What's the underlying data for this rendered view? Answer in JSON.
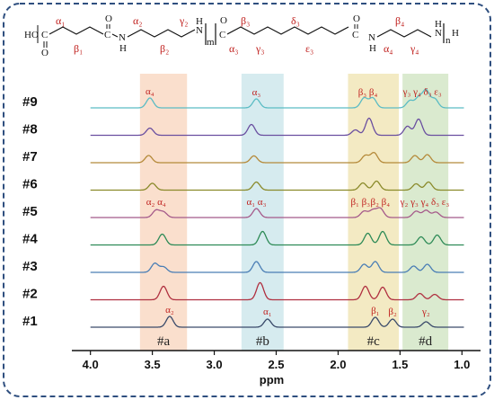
{
  "colors": {
    "frame": "#2f4f7f",
    "region_a": "#f9d9c4",
    "region_b": "#cfe7ec",
    "region_c": "#f1e6b8",
    "region_d": "#d3e6c7",
    "label_red": "#c0201e"
  },
  "structure": {
    "ho": "HO",
    "o_text": "O",
    "c_text": "C",
    "n_text": "N",
    "h_text": "H",
    "m_text": "m",
    "n_sub": "n",
    "alpha1": "α₁",
    "beta1": "β₁",
    "alpha2": "α₂",
    "beta2": "β₂",
    "gamma2": "γ₂",
    "beta3": "β₃",
    "delta3": "δ₃",
    "alpha3": "α₃",
    "gamma3": "γ₃",
    "epsilon3": "ε₃",
    "beta4": "β₄",
    "alpha4": "α₄",
    "gamma4": "γ₄"
  },
  "chart_data": {
    "type": "line",
    "xlabel": "ppm",
    "xlim": [
      4.15,
      0.85
    ],
    "x_reversed": true,
    "xticks": [
      4.0,
      3.5,
      3.0,
      2.5,
      2.0,
      1.5,
      1.0
    ],
    "regions": [
      {
        "label": "#a",
        "from": 3.6,
        "to": 3.22,
        "color": "#f9d9c4"
      },
      {
        "label": "#b",
        "from": 2.78,
        "to": 2.44,
        "color": "#cfe7ec"
      },
      {
        "label": "#c",
        "from": 1.92,
        "to": 1.51,
        "color": "#f1e6b8"
      },
      {
        "label": "#d",
        "from": 1.48,
        "to": 1.11,
        "color": "#d3e6c7"
      }
    ],
    "series": [
      {
        "name": "#9",
        "color": "#5bbcc4",
        "peaks": [
          [
            3.52,
            0.55
          ],
          [
            2.66,
            0.5
          ],
          [
            1.79,
            0.55
          ],
          [
            1.72,
            0.55
          ],
          [
            1.42,
            0.4
          ],
          [
            1.35,
            0.55
          ],
          [
            1.29,
            0.95
          ],
          [
            1.22,
            0.5
          ]
        ]
      },
      {
        "name": "#8",
        "color": "#6a4fa0",
        "peaks": [
          [
            3.52,
            0.4
          ],
          [
            2.7,
            0.6
          ],
          [
            1.86,
            0.3
          ],
          [
            1.75,
            0.95
          ],
          [
            1.44,
            0.5
          ],
          [
            1.35,
            0.9
          ]
        ]
      },
      {
        "name": "#7",
        "color": "#b58a3a",
        "peaks": [
          [
            3.53,
            0.4
          ],
          [
            2.68,
            0.38
          ],
          [
            1.78,
            0.4
          ],
          [
            1.71,
            0.55
          ],
          [
            1.38,
            0.4
          ],
          [
            1.28,
            0.45
          ]
        ]
      },
      {
        "name": "#6",
        "color": "#8a8a2a",
        "peaks": [
          [
            3.5,
            0.38
          ],
          [
            2.66,
            0.45
          ],
          [
            1.8,
            0.4
          ],
          [
            1.69,
            0.5
          ],
          [
            1.37,
            0.35
          ],
          [
            1.27,
            0.45
          ]
        ]
      },
      {
        "name": "#5",
        "color": "#a55a8a",
        "peaks": [
          [
            3.47,
            0.4
          ],
          [
            3.41,
            0.3
          ],
          [
            2.66,
            0.5
          ],
          [
            1.79,
            0.35
          ],
          [
            1.72,
            0.4
          ],
          [
            1.66,
            0.5
          ],
          [
            1.37,
            0.35
          ],
          [
            1.29,
            0.4
          ],
          [
            1.21,
            0.3
          ]
        ]
      },
      {
        "name": "#4",
        "color": "#2e8b57",
        "peaks": [
          [
            3.42,
            0.6
          ],
          [
            2.61,
            0.75
          ],
          [
            1.76,
            0.65
          ],
          [
            1.64,
            0.75
          ],
          [
            1.33,
            0.45
          ],
          [
            1.2,
            0.55
          ]
        ]
      },
      {
        "name": "#3",
        "color": "#4a7eb5",
        "peaks": [
          [
            3.48,
            0.5
          ],
          [
            3.41,
            0.3
          ],
          [
            2.66,
            0.6
          ],
          [
            1.79,
            0.45
          ],
          [
            1.7,
            0.6
          ],
          [
            1.39,
            0.35
          ],
          [
            1.28,
            0.45
          ]
        ]
      },
      {
        "name": "#2",
        "color": "#b03040",
        "peaks": [
          [
            3.41,
            0.75
          ],
          [
            2.63,
            0.95
          ],
          [
            1.78,
            0.75
          ],
          [
            1.64,
            0.7
          ],
          [
            1.34,
            0.35
          ],
          [
            1.22,
            0.3
          ]
        ]
      },
      {
        "name": "#1",
        "color": "#3a4a6a",
        "peaks": [
          [
            3.36,
            0.6
          ],
          [
            2.57,
            0.45
          ],
          [
            1.7,
            0.55
          ],
          [
            1.56,
            0.45
          ],
          [
            1.29,
            0.3
          ]
        ]
      }
    ],
    "annotations": [
      {
        "text": "α₄",
        "series": "#9",
        "x": 3.52
      },
      {
        "text": "α₃",
        "series": "#9",
        "x": 2.66
      },
      {
        "text": "β₃ β₄",
        "series": "#9",
        "x": 1.76
      },
      {
        "text": "γ₃ γ₄ δ₃ ε₃",
        "series": "#9",
        "x": 1.32
      },
      {
        "text": "α₂ α₄",
        "series": "#5",
        "x": 3.47
      },
      {
        "text": "α₁ α₃",
        "series": "#5",
        "x": 2.66
      },
      {
        "text": "β₁ β₃",
        "series": "#5",
        "x": 1.82
      },
      {
        "text": "β₂ β₄",
        "series": "#5",
        "x": 1.66
      },
      {
        "text": "γ₂ γ₃ γ₄ δ₃ ε₃",
        "series": "#5",
        "x": 1.3
      },
      {
        "text": "α₂",
        "series": "#1",
        "x": 3.36
      },
      {
        "text": "α₁",
        "series": "#1",
        "x": 2.57
      },
      {
        "text": "β₁",
        "series": "#1",
        "x": 1.7
      },
      {
        "text": "β₂",
        "series": "#1",
        "x": 1.56
      },
      {
        "text": "γ₂",
        "series": "#1",
        "x": 1.29
      }
    ]
  }
}
